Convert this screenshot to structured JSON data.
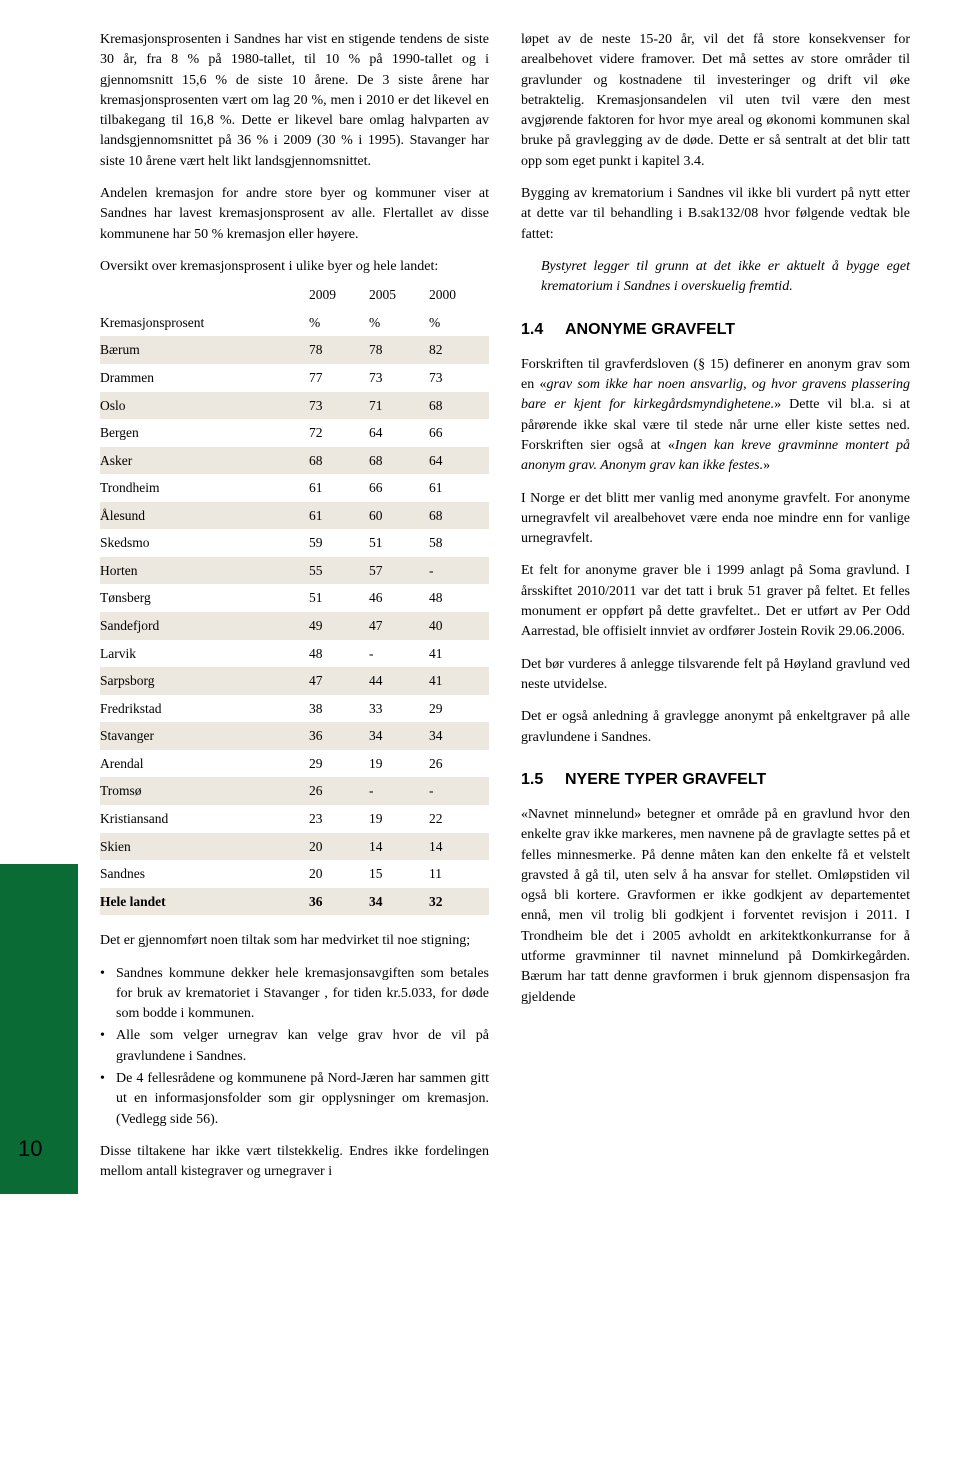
{
  "left": {
    "p1": "Kremasjonsprosenten i Sandnes har vist en stigende tendens de siste 30 år, fra 8 % på 1980-tallet, til 10 % på 1990-tallet og i gjennomsnitt 15,6 % de siste 10 årene. De 3 siste årene har kremasjonsprosenten vært om lag 20 %, men i 2010 er det likevel en tilbakegang til 16,8 %. Dette er likevel bare omlag halvparten av landsgjennomsnittet på 36 % i 2009 (30 % i 1995). Stavanger har siste 10 årene vært helt likt landsgjennomsnittet.",
    "p2": "Andelen kremasjon for andre store byer og kommuner viser at Sandnes har lavest kremasjonsprosent av alle. Flertallet av disse kommunene har 50 % kremasjon eller høyere.",
    "tableIntro": "Oversikt over kremasjonsprosent i ulike byer og hele landet:",
    "table": {
      "header": [
        "",
        "2009",
        "2005",
        "2000"
      ],
      "unitRow": [
        "Kremasjonsprosent",
        "%",
        "%",
        "%"
      ],
      "rows": [
        [
          "Bærum",
          "78",
          "78",
          "82"
        ],
        [
          "Drammen",
          "77",
          "73",
          "73"
        ],
        [
          "Oslo",
          "73",
          "71",
          "68"
        ],
        [
          "Bergen",
          "72",
          "64",
          "66"
        ],
        [
          "Asker",
          "68",
          "68",
          "64"
        ],
        [
          "Trondheim",
          "61",
          "66",
          "61"
        ],
        [
          "Ålesund",
          "61",
          "60",
          "68"
        ],
        [
          "Skedsmo",
          "59",
          "51",
          "58"
        ],
        [
          "Horten",
          "55",
          "57",
          "-"
        ],
        [
          "Tønsberg",
          "51",
          "46",
          "48"
        ],
        [
          "Sandefjord",
          "49",
          "47",
          "40"
        ],
        [
          "Larvik",
          "48",
          "-",
          "41"
        ],
        [
          "Sarpsborg",
          "47",
          "44",
          "41"
        ],
        [
          "Fredrikstad",
          "38",
          "33",
          "29"
        ],
        [
          "Stavanger",
          "36",
          "34",
          "34"
        ],
        [
          "Arendal",
          "29",
          "19",
          "26"
        ],
        [
          "Tromsø",
          "26",
          "-",
          "-"
        ],
        [
          "Kristiansand",
          "23",
          "19",
          "22"
        ],
        [
          "Skien",
          "20",
          "14",
          "14"
        ],
        [
          "Sandnes",
          "20",
          "15",
          "11"
        ],
        [
          "Hele landet",
          "36",
          "34",
          "32"
        ]
      ]
    },
    "p3": "Det er gjennomført noen tiltak som har medvirket til noe stigning;",
    "bullets": [
      "Sandnes kommune dekker hele kremasjonsavgiften som betales for bruk av krematoriet i Stavanger , for tiden kr.5.033, for døde som bodde i kommunen.",
      "Alle som velger urnegrav kan velge grav hvor de vil på gravlundene i Sandnes.",
      "De 4 fellesrådene og kommunene på Nord-Jæren har sammen gitt ut en informasjonsfolder som gir opplysninger om kremasjon. (Vedlegg side 56)."
    ],
    "p4": "Disse tiltakene har ikke vært tilstekkelig. Endres ikke fordelingen mellom antall kistegraver og urnegraver i"
  },
  "right": {
    "p1": "løpet av de neste 15-20 år, vil det få store konsekvenser for arealbehovet videre framover. Det må settes av store områder til gravlunder og kostnadene til investeringer og drift vil øke betraktelig. Kremasjonsandelen vil uten tvil være den mest avgjørende faktoren for hvor mye areal og økonomi kommunen skal bruke på gravlegging av de døde. Dette er så sentralt at det blir tatt opp som eget punkt i kapitel 3.4.",
    "p2": "Bygging av krematorium i Sandnes vil ikke bli vurdert på nytt etter at dette var til behandling i B.sak132/08 hvor følgende vedtak ble fattet:",
    "quote": "Bystyret legger til grunn at det ikke er aktuelt å bygge eget krematorium i Sandnes i overskuelig fremtid.",
    "h14num": "1.4",
    "h14": "ANONYME GRAVFELT",
    "p3a": "Forskriften til gravferdsloven (§ 15) definerer en anonym grav som en «",
    "p3i": "grav som ikke har noen ansvarlig, og hvor gravens plassering bare er kjent for kirkegårdsmyndighetene.",
    "p3b": "» Dette vil bl.a. si at pårørende ikke skal være til stede når urne eller kiste settes ned. Forskriften sier også at «",
    "p3i2": "Ingen kan kreve gravminne montert på anonym grav. Anonym grav kan ikke festes.",
    "p3c": "»",
    "p4": "I Norge er det blitt mer vanlig med anonyme gravfelt. For anonyme urnegravfelt vil arealbehovet være enda noe mindre enn for vanlige urnegravfelt.",
    "p5": "Et felt for anonyme graver ble i 1999 anlagt på Soma gravlund. I årsskiftet 2010/2011 var det tatt i bruk 51 graver på feltet. Et felles monument er oppført på dette gravfeltet.. Det er utført av Per Odd Aarrestad, ble offisielt innviet av ordfører Jostein Rovik 29.06.2006.",
    "p6": "Det bør vurderes å anlegge tilsvarende felt på Høyland gravlund ved neste utvidelse.",
    "p7": "Det er også anledning å gravlegge anonymt på enkeltgraver på alle gravlundene i Sandnes.",
    "h15num": "1.5",
    "h15": "NYERE TYPER GRAVFELT",
    "p8": "«Navnet minnelund» betegner et område på en gravlund hvor den enkelte grav ikke markeres, men navnene på de gravlagte settes på et felles minnesmerke. På denne måten kan den enkelte få et velstelt gravsted å gå til, uten selv å ha ansvar for stellet. Omløpstiden vil også bli kortere. Gravformen er ikke godkjent av departementet ennå, men vil trolig bli godkjent i forventet revisjon i 2011. I Trondheim ble det i 2005 avholdt en arkitektkonkurranse for å utforme gravminner til navnet minnelund på Domkirkegården. Bærum har tatt denne gravformen i bruk gjennom dispensasjon fra gjeldende"
  },
  "pageNumber": "10"
}
